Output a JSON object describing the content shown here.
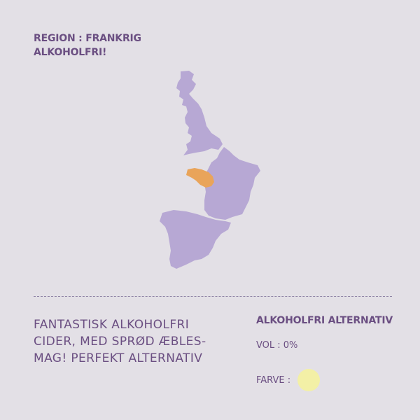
{
  "region": {
    "region_label": "REGION : FRANKRIG",
    "tag": "ALKOHOLFRI!"
  },
  "map": {
    "countries": [
      "great-britain",
      "france",
      "spain"
    ],
    "highlighted_area": "brittany-normandy",
    "base_color": "#b7a8d4",
    "highlight_color": "#e9a45a"
  },
  "description": {
    "lines": [
      "FANTASTISK ALKOHOLFRI",
      "CIDER, MED SPRØD ÆBLES-",
      "MAG! PERFEKT ALTERNATIV"
    ]
  },
  "info": {
    "title": "ALKOHOLFRI ALTERNATIV",
    "vol": "VOL : 0%",
    "farve_label": "FARVE :",
    "farve_color": "#f3f0a6"
  }
}
